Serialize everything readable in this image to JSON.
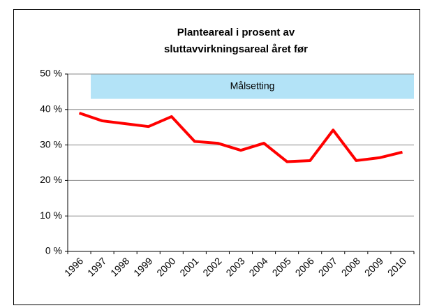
{
  "chart_data": {
    "type": "line",
    "title": [
      "Planteareal i prosent av",
      "sluttavvirkningsareal  året før"
    ],
    "categories": [
      "1996",
      "1997",
      "1998",
      "1999",
      "2000",
      "2001",
      "2002",
      "2003",
      "2004",
      "2005",
      "2006",
      "2007",
      "2008",
      "2009",
      "2010"
    ],
    "series": [
      {
        "name": "Planteareal",
        "color": "#ff0000",
        "values": [
          39,
          36.8,
          36,
          35.2,
          38,
          31,
          30.5,
          28.5,
          30.5,
          25.3,
          25.6,
          34.2,
          25.6,
          26.4,
          28
        ]
      }
    ],
    "ylim": [
      0,
      50
    ],
    "yticks": [
      {
        "value": 0,
        "label": "0 %"
      },
      {
        "value": 10,
        "label": "10 %"
      },
      {
        "value": 20,
        "label": "20 %"
      },
      {
        "value": 30,
        "label": "30 %"
      },
      {
        "value": 40,
        "label": "40 %"
      },
      {
        "value": 50,
        "label": "50 %"
      }
    ],
    "grid": true,
    "target": {
      "label": "Målsetting",
      "from": "1997",
      "to": "2010",
      "low": 43,
      "high": 50,
      "color": "#b3e3f7"
    }
  }
}
